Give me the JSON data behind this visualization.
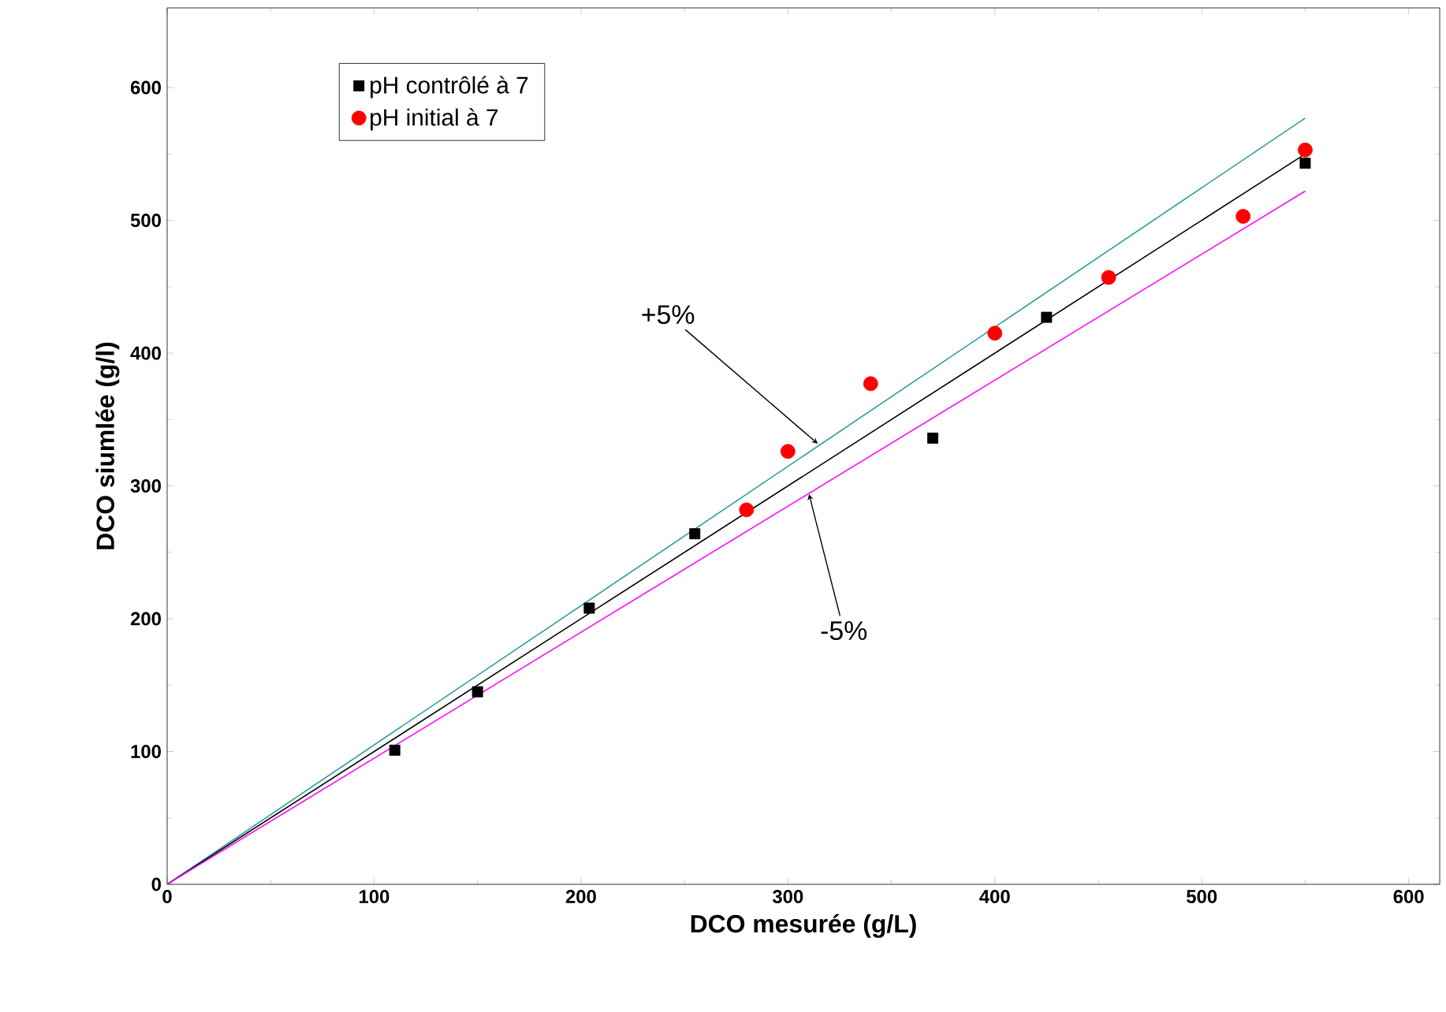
{
  "chart_data": {
    "type": "scatter",
    "xlabel": "DCO mesurée (g/L)",
    "ylabel": "DCO siumlée (g/l)",
    "xlim": [
      0,
      615
    ],
    "ylim": [
      0,
      660
    ],
    "xticks": [
      0,
      100,
      200,
      300,
      400,
      500,
      600
    ],
    "yticks": [
      0,
      100,
      200,
      300,
      400,
      500,
      600
    ],
    "legend": "top left",
    "grid": false,
    "series": [
      {
        "type": "line",
        "color": "#2a9d9d",
        "x": [
          0,
          550
        ],
        "values": [
          0,
          577
        ]
      },
      {
        "type": "line",
        "color": "#000000",
        "x": [
          0,
          550
        ],
        "values": [
          0,
          550
        ]
      },
      {
        "type": "line",
        "color": "#ff00ff",
        "x": [
          0,
          550
        ],
        "values": [
          0,
          522
        ]
      },
      {
        "name": "pH contrôlé à 7",
        "color": "#000000",
        "marker": "square",
        "x": [
          110,
          150,
          204,
          255,
          370,
          425,
          550
        ],
        "values": [
          101,
          145,
          208,
          264,
          336,
          427,
          543
        ]
      },
      {
        "name": "pH initial à 7",
        "color": "#ff0000",
        "marker": "circle",
        "x": [
          280,
          300,
          340,
          400,
          455,
          520,
          550
        ],
        "values": [
          282,
          326,
          377,
          415,
          457,
          503,
          553
        ]
      }
    ],
    "annotations": [
      {
        "text": "+5%",
        "x": 315,
        "y": 331
      },
      {
        "text": "-5%",
        "x": 310,
        "y": 295
      }
    ]
  }
}
